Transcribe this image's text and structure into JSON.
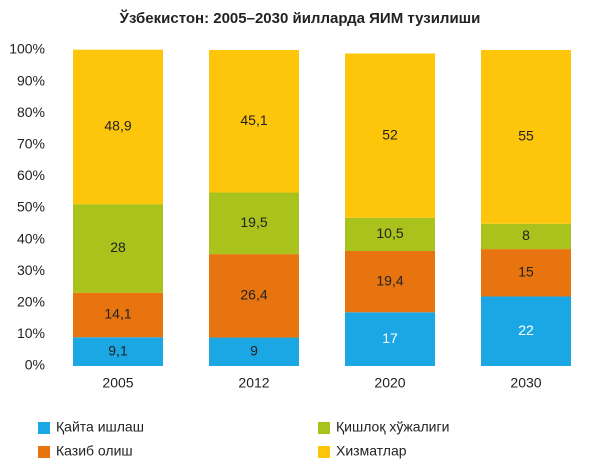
{
  "chart_data": {
    "type": "stacked_bar",
    "title": "Ўзбекистон: 2005–2030 йилларда ЯИМ тузилиши",
    "categories": [
      "2005",
      "2012",
      "2020",
      "2030"
    ],
    "series": [
      {
        "name": "Қайта ишлаш",
        "color": "#1aa7e4",
        "values": [
          9.1,
          9,
          17,
          22
        ],
        "value_labels": [
          "9,1",
          "9",
          "17",
          "22"
        ]
      },
      {
        "name": "Казиб олиш",
        "color": "#e8740f",
        "values": [
          14.1,
          26.4,
          19.4,
          15
        ],
        "value_labels": [
          "14,1",
          "26,4",
          "19,4",
          "15"
        ]
      },
      {
        "name": "Қишлоқ хўжалиги",
        "color": "#a9c21c",
        "values": [
          28,
          19.5,
          10.5,
          8
        ],
        "value_labels": [
          "28",
          "19,5",
          "10,5",
          "8"
        ]
      },
      {
        "name": "Хизматлар",
        "color": "#fec60b",
        "values": [
          48.9,
          45.1,
          52,
          55
        ],
        "value_labels": [
          "48,9",
          "45,1",
          "52",
          "55"
        ]
      }
    ],
    "ylim": [
      0,
      100
    ],
    "yticks": [
      {
        "value": 0,
        "label": "0%"
      },
      {
        "value": 10,
        "label": "10%"
      },
      {
        "value": 20,
        "label": "20%"
      },
      {
        "value": 30,
        "label": "30%"
      },
      {
        "value": 40,
        "label": "40%"
      },
      {
        "value": 50,
        "label": "50%"
      },
      {
        "value": 60,
        "label": "60%"
      },
      {
        "value": 70,
        "label": "70%"
      },
      {
        "value": 80,
        "label": "80%"
      },
      {
        "value": 90,
        "label": "90%"
      },
      {
        "value": 100,
        "label": "100%"
      }
    ]
  }
}
